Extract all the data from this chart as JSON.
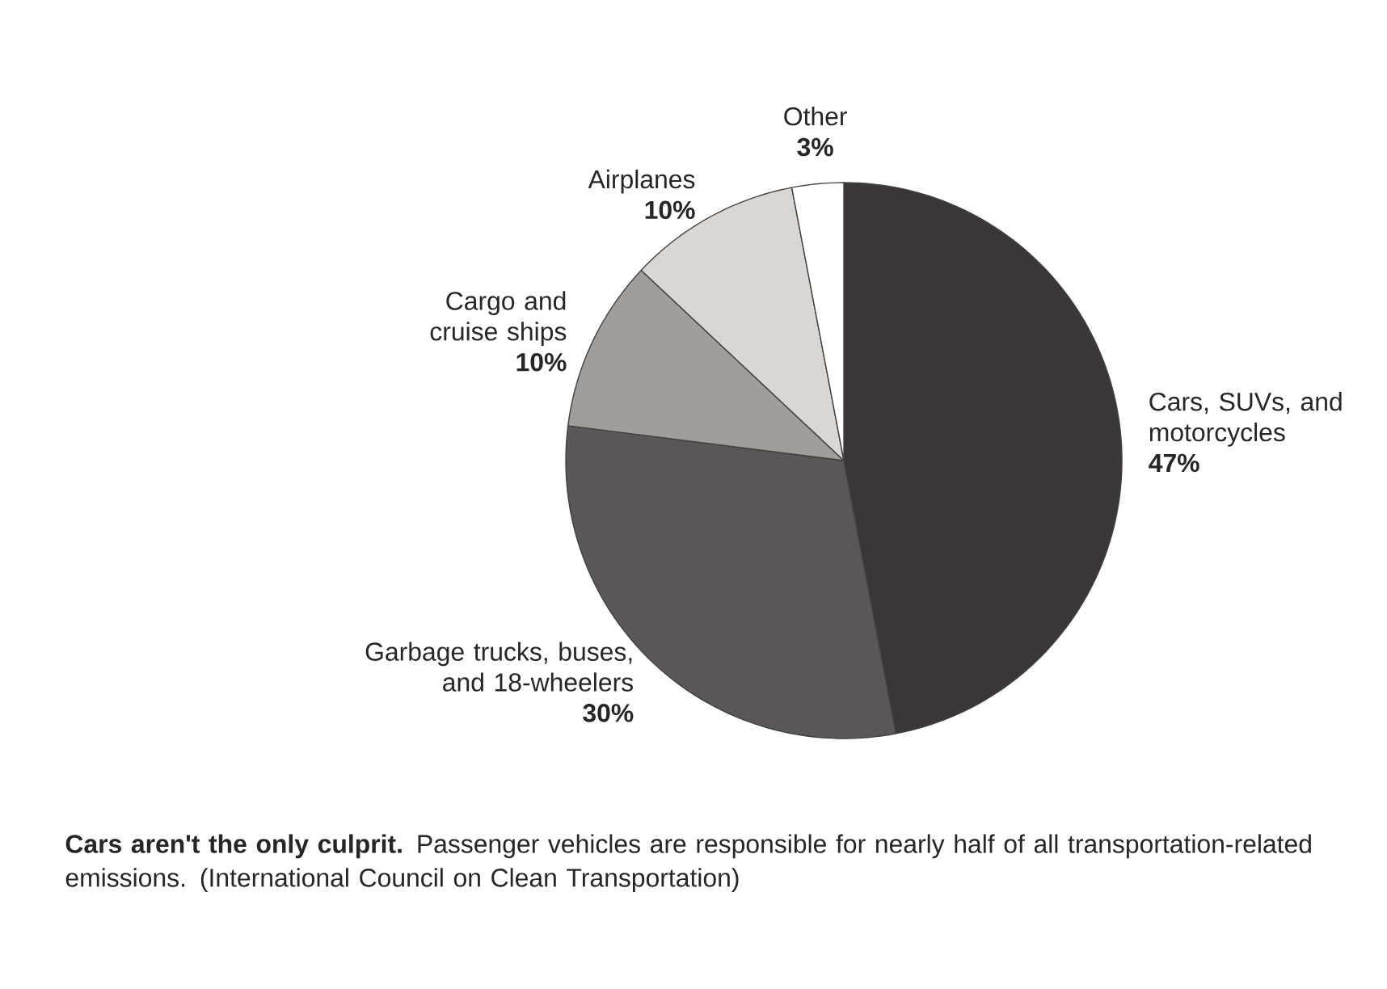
{
  "chart_data": {
    "type": "pie",
    "categories": [
      "Cars, SUVs, and motorcycles",
      "Garbage trucks, buses, and 18-wheelers",
      "Cargo and cruise ships",
      "Airplanes",
      "Other"
    ],
    "values": [
      47,
      30,
      10,
      10,
      3
    ],
    "colors": [
      "#3b3737",
      "#5c5757",
      "#a19d9b",
      "#d9d6d4",
      "#ffffff"
    ],
    "value_labels": [
      "47%",
      "30%",
      "10%",
      "10%",
      "3%"
    ],
    "annotations": [
      "**Cars aren't the only culprit.** Passenger vehicles are responsible for nearly half of all transportation-related emissions. (International Council on Clean Transportation)"
    ]
  }
}
